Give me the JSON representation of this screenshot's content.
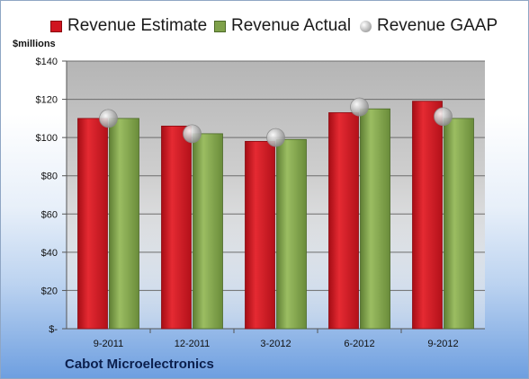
{
  "units_label": "$millions",
  "company_name": "Cabot Microelectronics",
  "colors": {
    "estimate": "#d0141f",
    "actual": "#7fa14a",
    "gaap": "#b8b8b8"
  },
  "chart_data": {
    "type": "bar",
    "categories": [
      "9-2011",
      "12-2011",
      "3-2012",
      "6-2012",
      "9-2012"
    ],
    "series": [
      {
        "name": "Revenue Estimate",
        "style": "bar",
        "values": [
          110,
          106,
          98,
          113,
          119
        ]
      },
      {
        "name": "Revenue Actual",
        "style": "bar",
        "values": [
          110,
          102,
          99,
          115,
          110
        ]
      },
      {
        "name": "Revenue GAAP",
        "style": "marker",
        "values": [
          110,
          102,
          100,
          116,
          111
        ]
      }
    ],
    "ylim": [
      0,
      140
    ],
    "yticks": [
      0,
      20,
      40,
      60,
      80,
      100,
      120,
      140
    ],
    "ytick_labels": [
      "$-",
      "$20",
      "$40",
      "$60",
      "$80",
      "$100",
      "$120",
      "$140"
    ],
    "grid": true,
    "legend_position": "top"
  }
}
